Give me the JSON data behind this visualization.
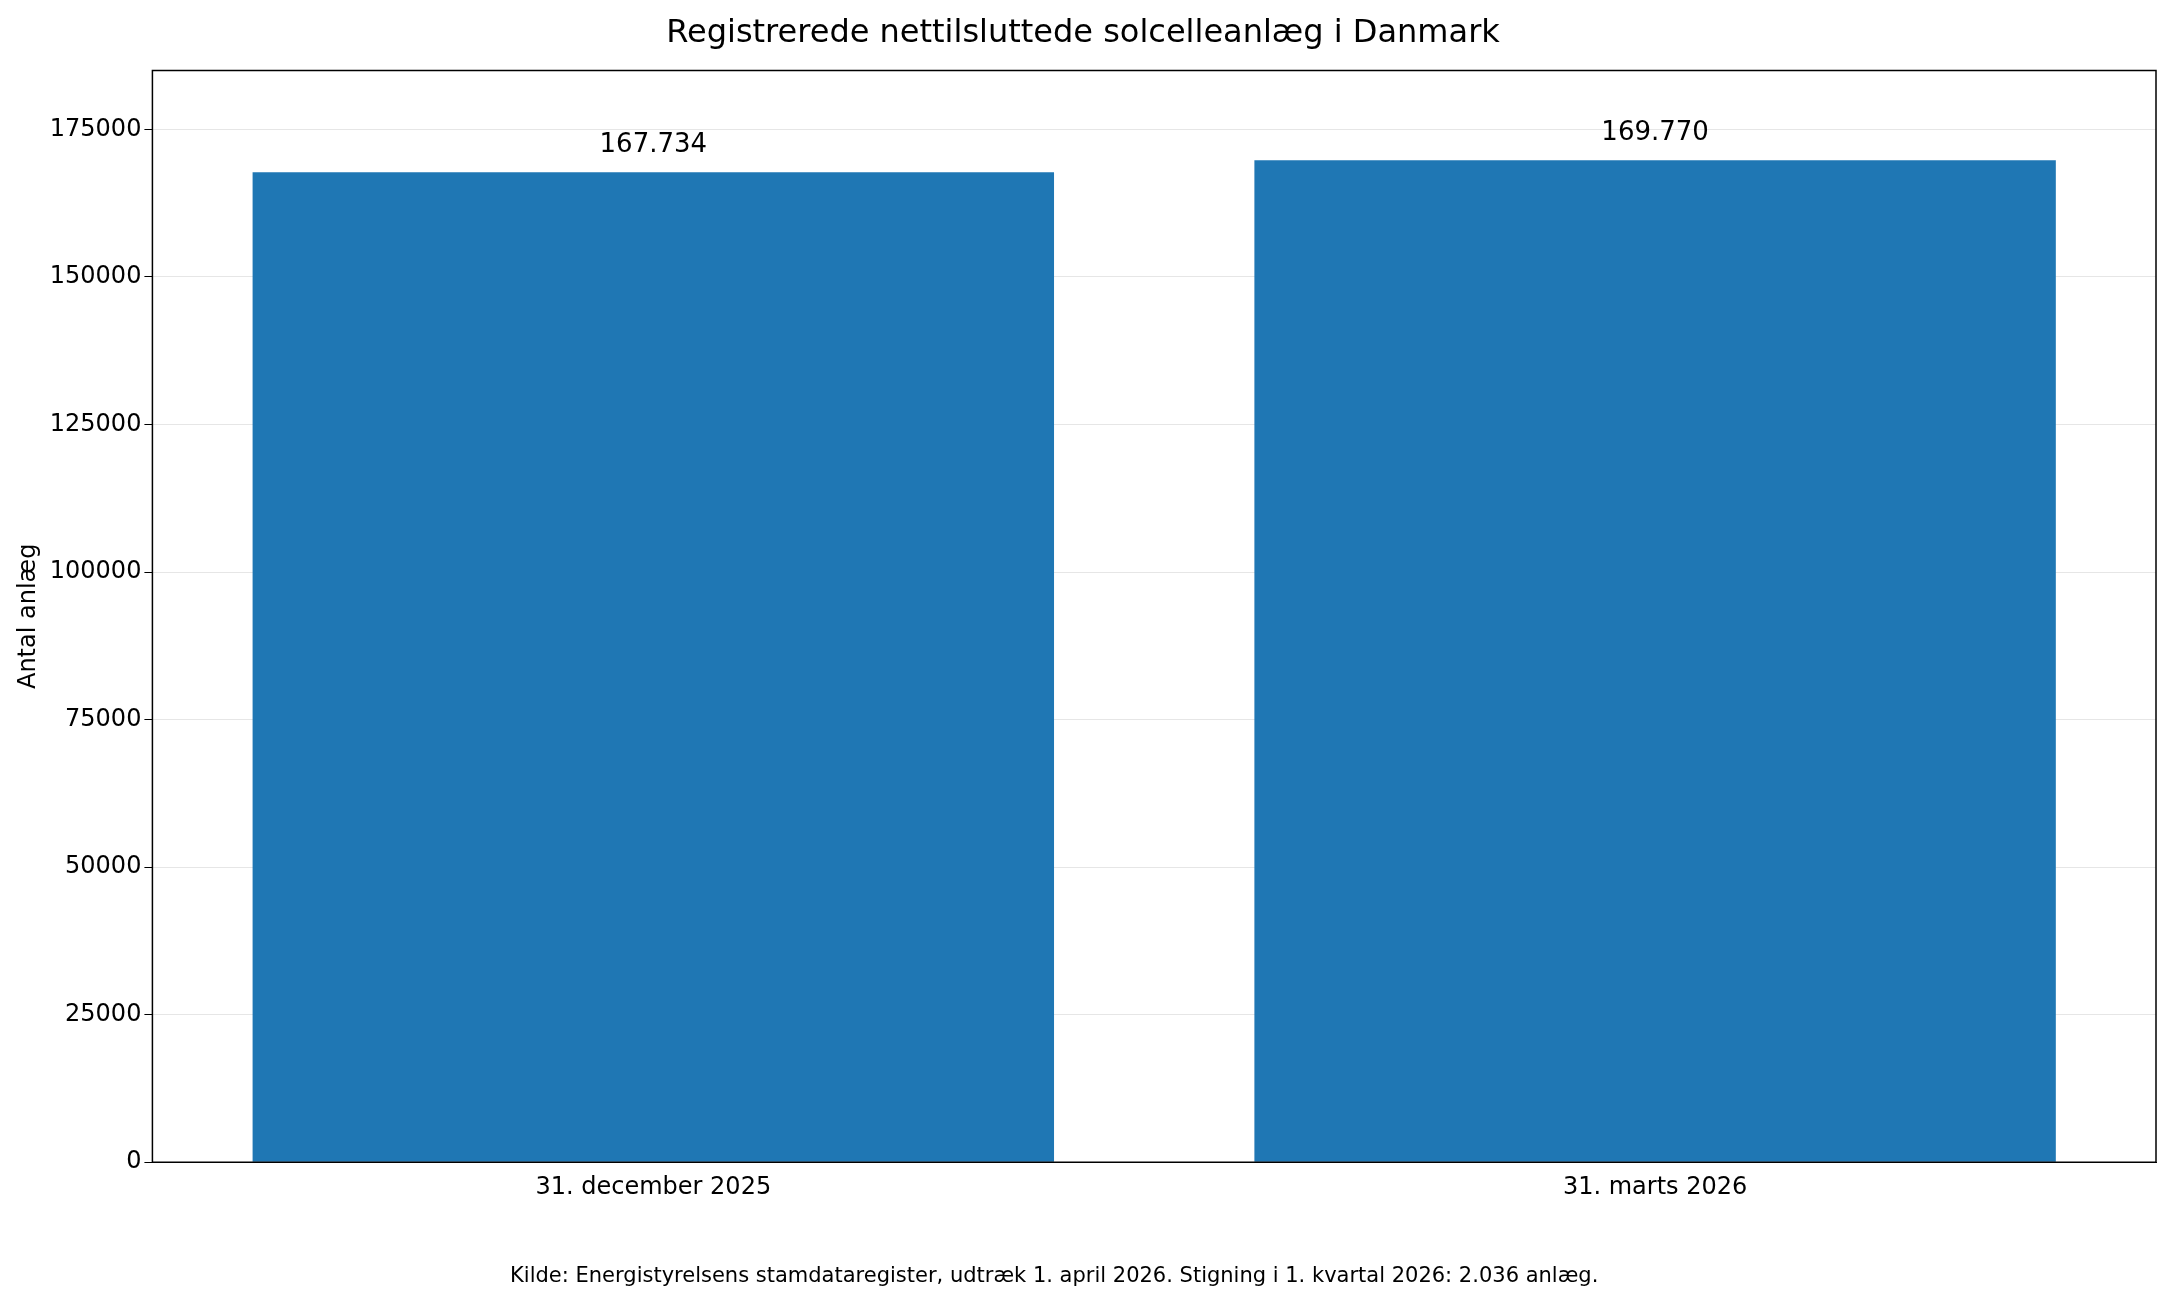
{
  "chart_data": {
    "type": "bar",
    "title": "Registrerede nettilsluttede solcelleanlæg i Danmark",
    "ylabel": "Antal anlæg",
    "categories": [
      "31. december 2025",
      "31. marts 2026"
    ],
    "values": [
      167734,
      169770
    ],
    "color": "#1f77b4",
    "value_labels": [
      "167.734",
      "169.770"
    ],
    "ylim": [
      0,
      185000
    ],
    "yticks": [
      0,
      25000,
      50000,
      75000,
      100000,
      125000,
      150000,
      175000
    ],
    "grid": "y",
    "legend": false,
    "annotations": [
      "Kilde: Energistyrelsens stamdataregister, udtræk 1. april 2026. Stigning i 1. kvartal 2026: 2.036 anlæg."
    ]
  }
}
